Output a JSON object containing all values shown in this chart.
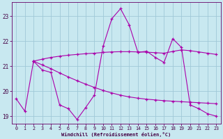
{
  "background_color": "#c8e8f0",
  "grid_color": "#a0c8d8",
  "line_color": "#aa00aa",
  "xlabel": "Windchill (Refroidissement éolien,°C)",
  "xlim": [
    -0.5,
    23.5
  ],
  "ylim": [
    18.7,
    23.55
  ],
  "yticks": [
    19,
    20,
    21,
    22,
    23
  ],
  "xticks": [
    0,
    1,
    2,
    3,
    4,
    5,
    6,
    7,
    8,
    9,
    10,
    11,
    12,
    13,
    14,
    15,
    16,
    17,
    18,
    19,
    20,
    21,
    22,
    23
  ],
  "line1_x": [
    0,
    1,
    2,
    3,
    4,
    5,
    6,
    7,
    8,
    9,
    10,
    11,
    12,
    13,
    14,
    15,
    16,
    17,
    18,
    19,
    20,
    21,
    22,
    23
  ],
  "line1_y": [
    19.7,
    19.2,
    21.2,
    20.85,
    20.75,
    19.45,
    19.3,
    18.87,
    19.35,
    19.85,
    21.8,
    22.9,
    23.3,
    22.65,
    21.55,
    21.6,
    21.35,
    21.15,
    22.1,
    21.75,
    19.45,
    19.3,
    19.1,
    19.0
  ],
  "line2_x": [
    2,
    3,
    4,
    5,
    6,
    7,
    8,
    9,
    10,
    11,
    12,
    13,
    14,
    15,
    16,
    17,
    18,
    19,
    20,
    21,
    22,
    23
  ],
  "line2_y": [
    21.2,
    21.28,
    21.35,
    21.4,
    21.44,
    21.47,
    21.5,
    21.52,
    21.55,
    21.57,
    21.58,
    21.58,
    21.57,
    21.56,
    21.54,
    21.52,
    21.59,
    21.65,
    21.62,
    21.57,
    21.52,
    21.47
  ],
  "line3_x": [
    2,
    3,
    4,
    5,
    6,
    7,
    8,
    9,
    10,
    11,
    12,
    13,
    14,
    15,
    16,
    17,
    18,
    19,
    20,
    21,
    22,
    23
  ],
  "line3_y": [
    21.2,
    21.05,
    20.9,
    20.73,
    20.57,
    20.42,
    20.28,
    20.15,
    20.03,
    19.93,
    19.84,
    19.77,
    19.72,
    19.68,
    19.65,
    19.62,
    19.6,
    19.58,
    19.56,
    19.54,
    19.52,
    19.5
  ]
}
